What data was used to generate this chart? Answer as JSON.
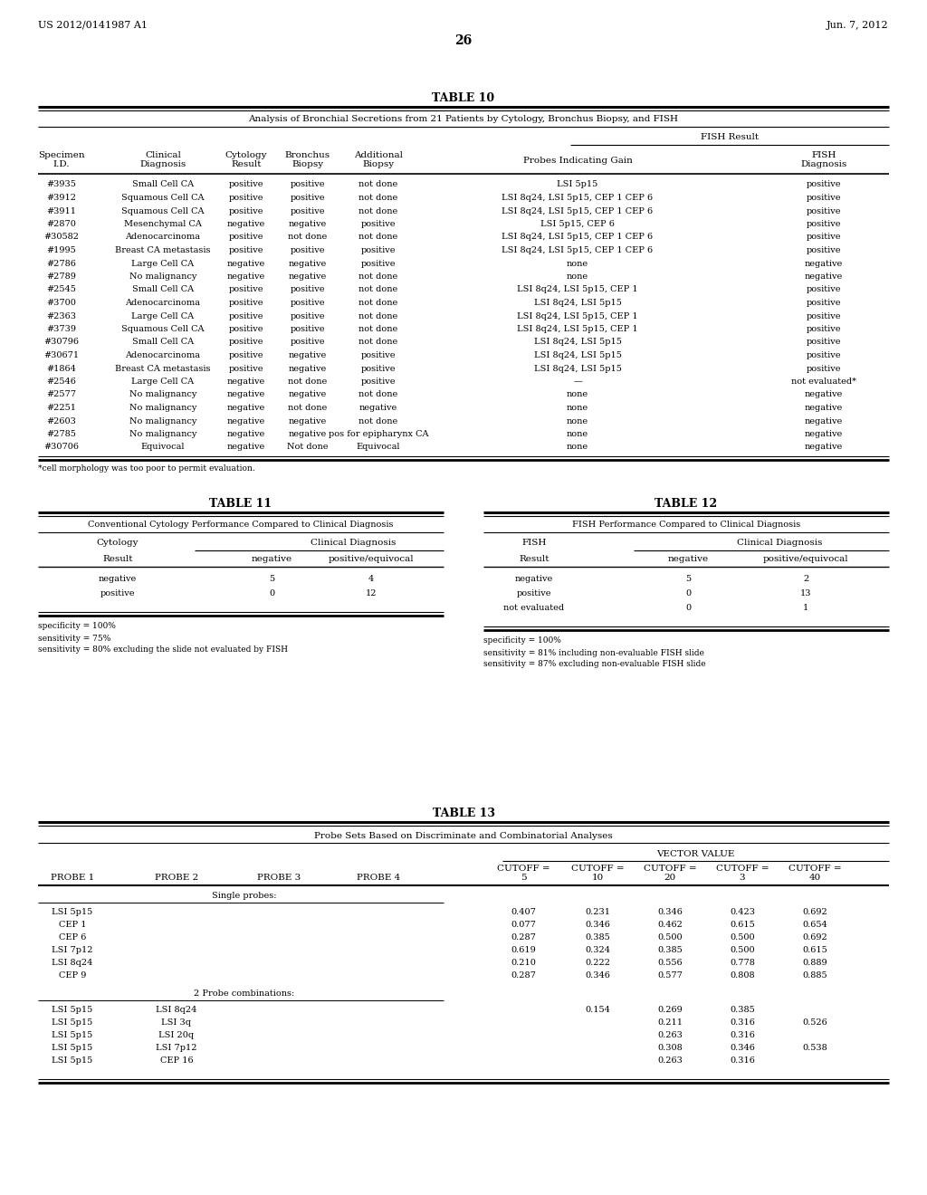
{
  "header_left": "US 2012/0141987 A1",
  "header_right": "Jun. 7, 2012",
  "page_num": "26",
  "table10_title": "TABLE 10",
  "table10_subtitle": "Analysis of Bronchial Secretions from 21 Patients by Cytology, Bronchus Biopsy, and FISH",
  "table10_fish_header": "FISH Result",
  "table10_col_headers": [
    "Specimen\nI.D.",
    "Clinical\nDiagnosis",
    "Cytology\nResult",
    "Bronchus\nBiopsy",
    "Additional\nBiopsy",
    "Probes Indicating Gain",
    "FISH\nDiagnosis"
  ],
  "table10_rows": [
    [
      "#3935",
      "Small Cell CA",
      "positive",
      "positive",
      "not done",
      "LSI 5p15",
      "positive"
    ],
    [
      "#3912",
      "Squamous Cell CA",
      "positive",
      "positive",
      "not done",
      "LSI 8q24, LSI 5p15, CEP 1 CEP 6",
      "positive"
    ],
    [
      "#3911",
      "Squamous Cell CA",
      "positive",
      "positive",
      "not done",
      "LSI 8q24, LSI 5p15, CEP 1 CEP 6",
      "positive"
    ],
    [
      "#2870",
      "Mesenchymal CA",
      "negative",
      "negative",
      "positive",
      "LSI 5p15, CEP 6",
      "positive"
    ],
    [
      "#30582",
      "Adenocarcinoma",
      "positive",
      "not done",
      "not done",
      "LSI 8q24, LSI 5p15, CEP 1 CEP 6",
      "positive"
    ],
    [
      "#1995",
      "Breast CA metastasis",
      "positive",
      "positive",
      "positive",
      "LSI 8q24, LSI 5p15, CEP 1 CEP 6",
      "positive"
    ],
    [
      "#2786",
      "Large Cell CA",
      "negative",
      "negative",
      "positive",
      "none",
      "negative"
    ],
    [
      "#2789",
      "No malignancy",
      "negative",
      "negative",
      "not done",
      "none",
      "negative"
    ],
    [
      "#2545",
      "Small Cell CA",
      "positive",
      "positive",
      "not done",
      "LSI 8q24, LSI 5p15, CEP 1",
      "positive"
    ],
    [
      "#3700",
      "Adenocarcinoma",
      "positive",
      "positive",
      "not done",
      "LSI 8q24, LSI 5p15",
      "positive"
    ],
    [
      "#2363",
      "Large Cell CA",
      "positive",
      "positive",
      "not done",
      "LSI 8q24, LSI 5p15, CEP 1",
      "positive"
    ],
    [
      "#3739",
      "Squamous Cell CA",
      "positive",
      "positive",
      "not done",
      "LSI 8q24, LSI 5p15, CEP 1",
      "positive"
    ],
    [
      "#30796",
      "Small Cell CA",
      "positive",
      "positive",
      "not done",
      "LSI 8q24, LSI 5p15",
      "positive"
    ],
    [
      "#30671",
      "Adenocarcinoma",
      "positive",
      "negative",
      "positive",
      "LSI 8q24, LSI 5p15",
      "positive"
    ],
    [
      "#1864",
      "Breast CA metastasis",
      "positive",
      "negative",
      "positive",
      "LSI 8q24, LSI 5p15",
      "positive"
    ],
    [
      "#2546",
      "Large Cell CA",
      "negative",
      "not done",
      "positive",
      "—",
      "not evaluated*"
    ],
    [
      "#2577",
      "No malignancy",
      "negative",
      "negative",
      "not done",
      "none",
      "negative"
    ],
    [
      "#2251",
      "No malignancy",
      "negative",
      "not done",
      "negative",
      "none",
      "negative"
    ],
    [
      "#2603",
      "No malignancy",
      "negative",
      "negative",
      "not done",
      "none",
      "negative"
    ],
    [
      "#2785",
      "No malignancy",
      "negative",
      "negative",
      "pos for epipharynx CA",
      "none",
      "negative"
    ],
    [
      "#30706",
      "Equivocal",
      "negative",
      "Not done",
      "Equivocal",
      "none",
      "negative"
    ]
  ],
  "table10_footnote": "*cell morphology was too poor to permit evaluation.",
  "table11_title": "TABLE 11",
  "table11_subtitle": "Conventional Cytology Performance Compared to Clinical Diagnosis",
  "table11_col1": "Cytology",
  "table11_col2": "Clinical Diagnosis",
  "table11_rows": [
    [
      "negative",
      "5",
      "4"
    ],
    [
      "positive",
      "0",
      "12"
    ]
  ],
  "table11_notes": [
    "specificity = 100%",
    "sensitivity = 75%",
    "sensitivity = 80% excluding the slide not evaluated by FISH"
  ],
  "table12_title": "TABLE 12",
  "table12_subtitle": "FISH Performance Compared to Clinical Diagnosis",
  "table12_col1": "FISH",
  "table12_col2": "Clinical Diagnosis",
  "table12_rows": [
    [
      "negative",
      "5",
      "2"
    ],
    [
      "positive",
      "0",
      "13"
    ],
    [
      "not evaluated",
      "0",
      "1"
    ]
  ],
  "table12_notes": [
    "specificity = 100%",
    "sensitivity = 81% including non-evaluable FISH slide",
    "sensitivity = 87% excluding non-evaluable FISH slide"
  ],
  "table13_title": "TABLE 13",
  "table13_subtitle": "Probe Sets Based on Discriminate and Combinatorial Analyses",
  "table13_vector_header": "VECTOR VALUE",
  "table13_col_headers": [
    "PROBE 1",
    "PROBE 2",
    "PROBE 3",
    "PROBE 4",
    "CUTOFF =\n5",
    "CUTOFF =\n10",
    "CUTOFF =\n20",
    "CUTOFF =\n3",
    "CUTOFF =\n40"
  ],
  "table13_single_label": "Single probes:",
  "table13_single_rows": [
    [
      "LSI 5p15",
      "",
      "",
      "",
      "0.407",
      "0.231",
      "0.346",
      "0.423",
      "0.692"
    ],
    [
      "CEP 1",
      "",
      "",
      "",
      "0.077",
      "0.346",
      "0.462",
      "0.615",
      "0.654"
    ],
    [
      "CEP 6",
      "",
      "",
      "",
      "0.287",
      "0.385",
      "0.500",
      "0.500",
      "0.692"
    ],
    [
      "LSI 7p12",
      "",
      "",
      "",
      "0.619",
      "0.324",
      "0.385",
      "0.500",
      "0.615"
    ],
    [
      "LSI 8q24",
      "",
      "",
      "",
      "0.210",
      "0.222",
      "0.556",
      "0.778",
      "0.889"
    ],
    [
      "CEP 9",
      "",
      "",
      "",
      "0.287",
      "0.346",
      "0.577",
      "0.808",
      "0.885"
    ]
  ],
  "table13_2probe_label": "2 Probe combinations:",
  "table13_2probe_rows": [
    [
      "LSI 5p15",
      "LSI 8q24",
      "",
      "",
      "",
      "0.154",
      "0.269",
      "0.385",
      ""
    ],
    [
      "LSI 5p15",
      "LSI 3q",
      "",
      "",
      "",
      "",
      "0.211",
      "0.316",
      "0.526"
    ],
    [
      "LSI 5p15",
      "LSI 20q",
      "",
      "",
      "",
      "",
      "0.263",
      "0.316",
      ""
    ],
    [
      "LSI 5p15",
      "LSI 7p12",
      "",
      "",
      "",
      "",
      "0.308",
      "0.346",
      "0.538"
    ],
    [
      "LSI 5p15",
      "CEP 16",
      "",
      "",
      "",
      "",
      "0.263",
      "0.316",
      ""
    ]
  ]
}
